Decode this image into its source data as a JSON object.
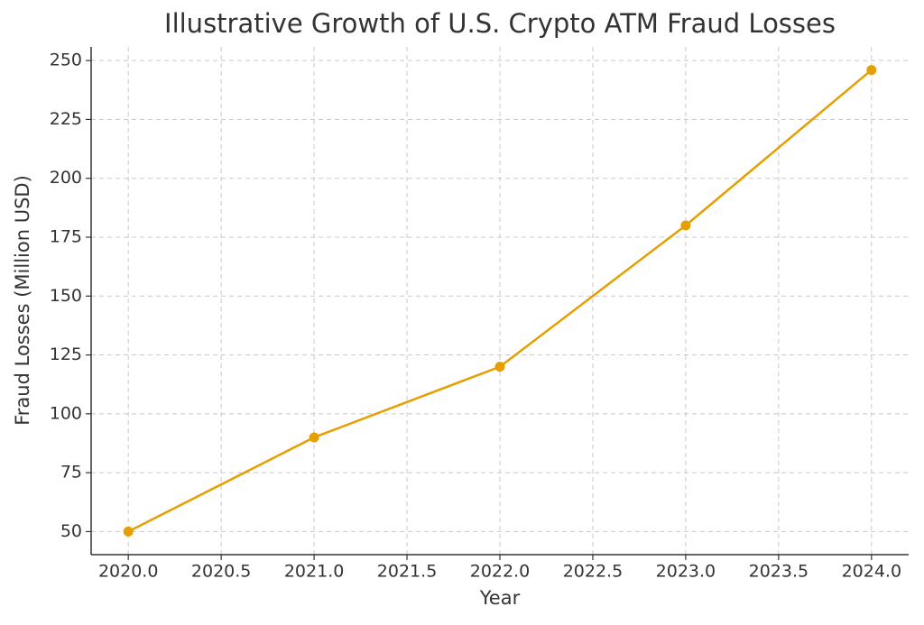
{
  "chart_data": {
    "type": "line",
    "title": "Illustrative Growth of U.S. Crypto ATM Fraud Losses",
    "x_label": "Year",
    "y_label": "Fraud Losses (Million USD)",
    "x": [
      2020,
      2021,
      2022,
      2023,
      2024
    ],
    "series": [
      {
        "name": "Fraud Losses",
        "color": "#e69f00",
        "values": [
          50,
          90,
          120,
          180,
          246
        ]
      }
    ],
    "xlim": [
      2019.8,
      2024.2
    ],
    "xticks": [
      {
        "value": 2020,
        "label": "2020.0"
      },
      2020.5,
      {
        "value": 2021,
        "label": "2021.0"
      },
      2021.5,
      {
        "value": 2022,
        "label": "2022.0"
      },
      2022.5,
      {
        "value": 2023,
        "label": "2023.0"
      },
      2023.5,
      {
        "value": 2024,
        "label": "2024.0"
      }
    ],
    "ylim": [
      40.2,
      255.8
    ],
    "yticks": [
      50,
      75,
      100,
      125,
      150,
      175,
      200,
      225,
      250
    ],
    "grid": true
  }
}
